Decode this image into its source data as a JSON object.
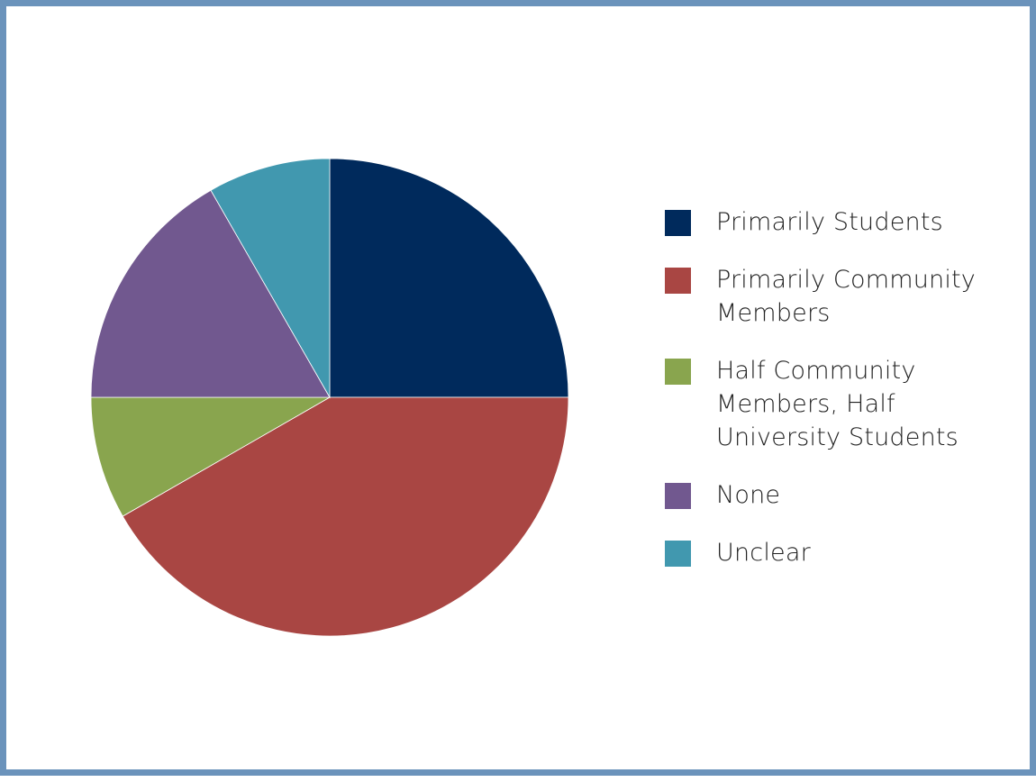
{
  "chart_data": {
    "type": "pie",
    "title": "",
    "start_angle_deg": 0,
    "direction": "clockwise",
    "slices": [
      {
        "label": "Primarily Students",
        "value": 25,
        "color": "#002a5c"
      },
      {
        "label": "Primarily Community Members",
        "value": 41.7,
        "color": "#a94643"
      },
      {
        "label": "Half Community Members, Half University Students",
        "value": 8.3,
        "color": "#89a54e"
      },
      {
        "label": "None",
        "value": 16.7,
        "color": "#71588f"
      },
      {
        "label": "Unclear",
        "value": 8.3,
        "color": "#4198af"
      }
    ],
    "legend_position": "right"
  },
  "legend": {
    "items": [
      {
        "label": "Primarily Students",
        "color": "#002a5c"
      },
      {
        "label": "Primarily Community Members",
        "color": "#a94643"
      },
      {
        "label": "Half Community Members, Half University Students",
        "color": "#89a54e"
      },
      {
        "label": "None",
        "color": "#71588f"
      },
      {
        "label": "Unclear",
        "color": "#4198af"
      }
    ]
  },
  "colors": {
    "frame_border": "#6b93bb",
    "background": "#ffffff",
    "slice_separator": "#ffffff"
  }
}
